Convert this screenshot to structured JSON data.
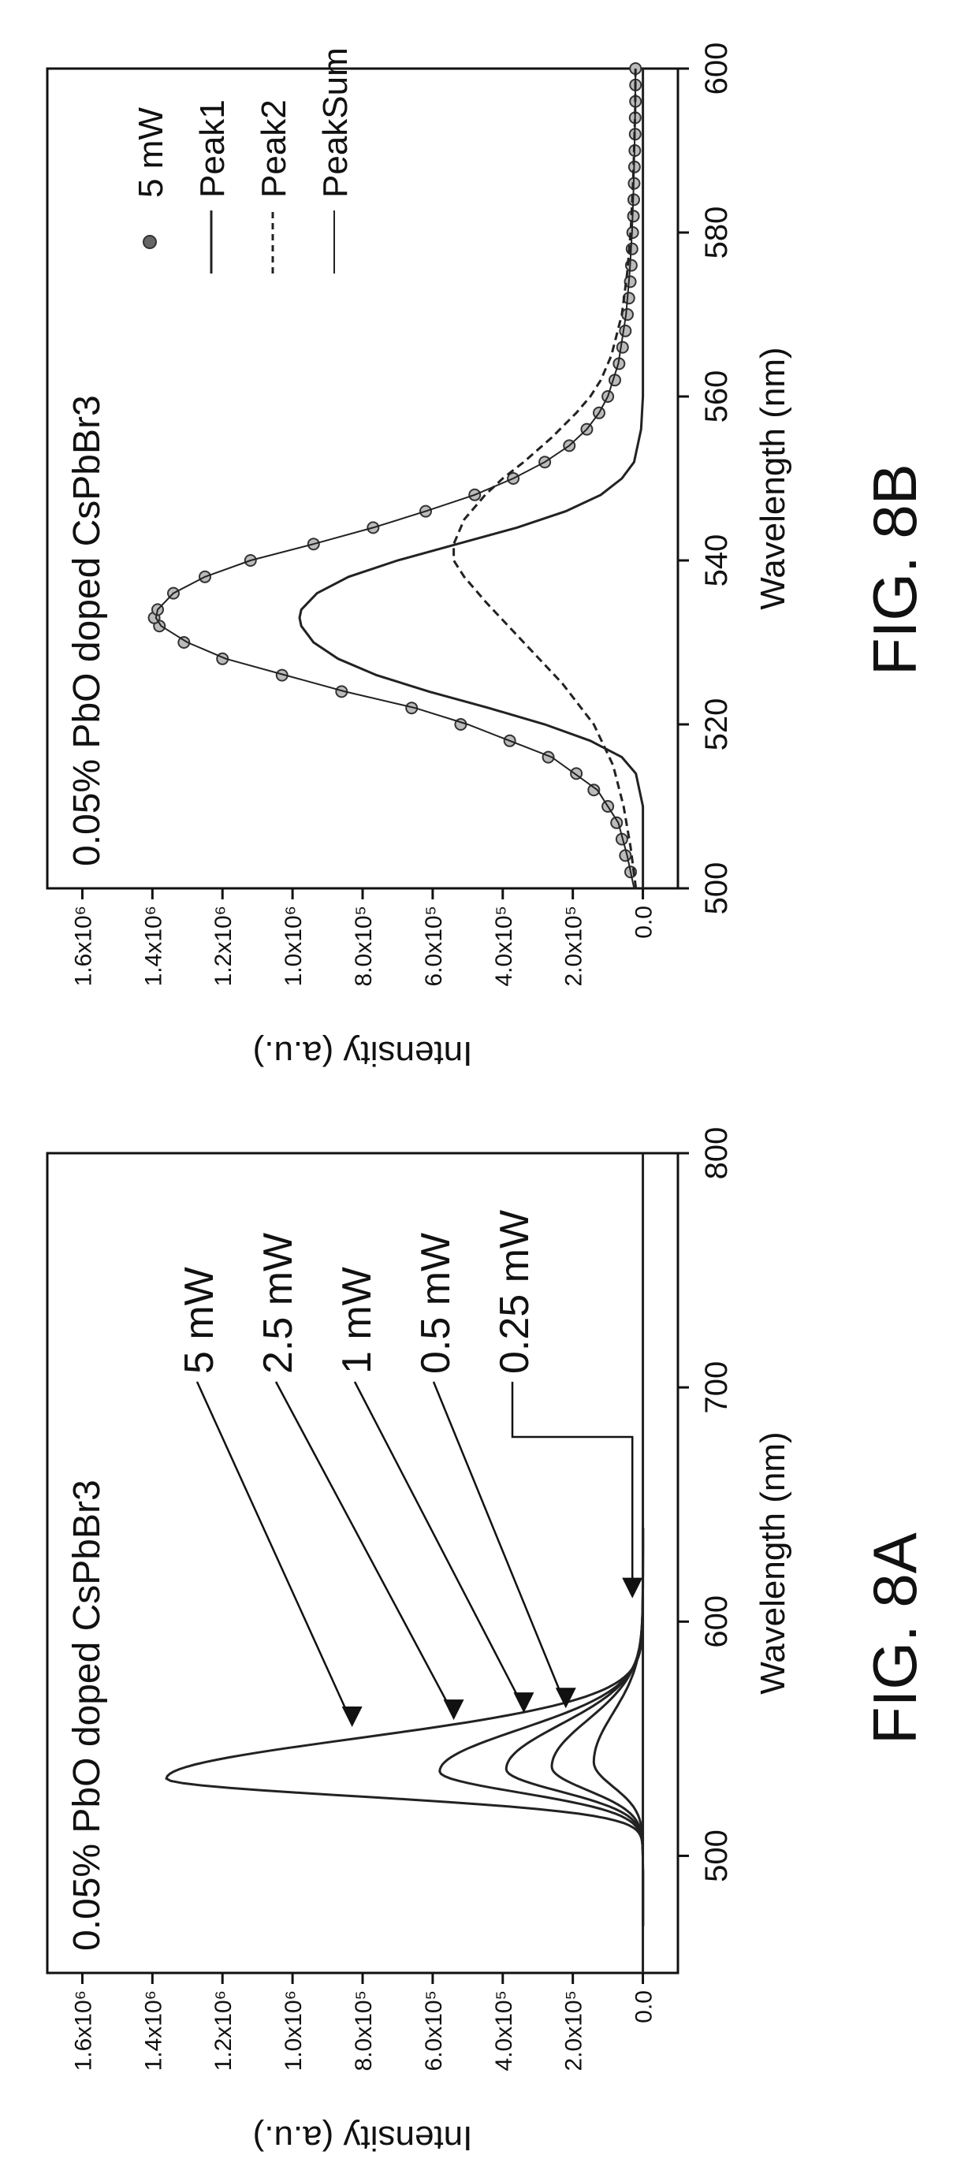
{
  "figures": [
    {
      "id": "fig8a",
      "figure_label": "FIG. 8A",
      "chart_data": {
        "type": "line",
        "title": "0.05% PbO doped CsPbBr3",
        "xlabel": "Wavelength (nm)",
        "ylabel": "Intensity (a.u.)",
        "xlim": [
          450,
          800
        ],
        "ylim": [
          -100000,
          1700000
        ],
        "x_ticks": [
          500,
          600,
          700,
          800
        ],
        "x_tick_labels": [
          "500",
          "600",
          "700",
          "800"
        ],
        "y_ticks": [
          0,
          200000,
          400000,
          600000,
          800000,
          1000000,
          1200000,
          1400000,
          1600000
        ],
        "y_tick_labels": [
          "0.0",
          "2.0x10⁵",
          "4.0x10⁵",
          "6.0x10⁵",
          "8.0x10⁵",
          "1.0x10⁶",
          "1.2x10⁶",
          "1.4x10⁶",
          "1.6x10⁶"
        ],
        "grid": false,
        "series": [
          {
            "name": "5 mW",
            "peak_x": 533,
            "peak_y": 1360000,
            "wl": 7.5,
            "wr": 17,
            "color": "#222222"
          },
          {
            "name": "2.5 mW",
            "peak_x": 536,
            "peak_y": 580000,
            "wl": 9,
            "wr": 18,
            "color": "#222222"
          },
          {
            "name": "1 mW",
            "peak_x": 537,
            "peak_y": 390000,
            "wl": 9.5,
            "wr": 19,
            "color": "#222222"
          },
          {
            "name": "0.5 mW",
            "peak_x": 538,
            "peak_y": 260000,
            "wl": 10,
            "wr": 20,
            "color": "#222222"
          },
          {
            "name": "0.25 mW",
            "peak_x": 540,
            "peak_y": 140000,
            "wl": 10.5,
            "wr": 21,
            "color": "#222222"
          }
        ],
        "annotations": [
          {
            "text": "5 mW",
            "points_to_x": 555,
            "points_to_y": 830000
          },
          {
            "text": "2.5 mW",
            "points_to_x": 558,
            "points_to_y": 540000
          },
          {
            "text": "1 mW",
            "points_to_x": 561,
            "points_to_y": 340000
          },
          {
            "text": "0.5 mW",
            "points_to_x": 563,
            "points_to_y": 220000
          },
          {
            "text": "0.25 mW",
            "points_to_x": 610,
            "points_to_y": 30000
          }
        ]
      }
    },
    {
      "id": "fig8b",
      "figure_label": "FIG. 8B",
      "chart_data": {
        "type": "line",
        "title": "0.05% PbO doped CsPbBr3",
        "xlabel": "Wavelength (nm)",
        "ylabel": "Intensity (a.u.)",
        "xlim": [
          500,
          600
        ],
        "ylim": [
          -100000,
          1700000
        ],
        "x_ticks": [
          500,
          520,
          540,
          560,
          580,
          600
        ],
        "x_tick_labels": [
          "500",
          "520",
          "540",
          "560",
          "580",
          "600"
        ],
        "y_ticks": [
          0,
          200000,
          400000,
          600000,
          800000,
          1000000,
          1200000,
          1400000,
          1600000
        ],
        "y_tick_labels": [
          "0.0",
          "2.0x10⁵",
          "4.0x10⁵",
          "6.0x10⁵",
          "8.0x10⁵",
          "1.0x10⁶",
          "1.2x10⁶",
          "1.4x10⁶",
          "1.6x10⁶"
        ],
        "grid": false,
        "legend_position": "top-right",
        "series": [
          {
            "name": "5 mW",
            "style": "markers",
            "x": [
              502,
              504,
              506,
              508,
              510,
              512,
              514,
              516,
              518,
              520,
              522,
              524,
              526,
              528,
              530,
              532,
              533,
              534,
              536,
              538,
              540,
              542,
              544,
              546,
              548,
              550,
              552,
              554,
              556,
              558,
              560,
              562,
              564,
              566,
              568,
              570,
              572,
              574,
              576,
              578,
              580,
              582,
              584,
              586,
              588,
              590,
              592,
              594,
              596,
              598,
              600
            ],
            "y": [
              35000,
              50000,
              60000,
              75000,
              100000,
              140000,
              190000,
              270000,
              380000,
              520000,
              660000,
              860000,
              1030000,
              1200000,
              1310000,
              1380000,
              1395000,
              1385000,
              1340000,
              1250000,
              1120000,
              940000,
              770000,
              620000,
              480000,
              370000,
              280000,
              210000,
              160000,
              125000,
              100000,
              80000,
              68000,
              58000,
              50000,
              44000,
              40000,
              36000,
              33000,
              31000,
              29000,
              27000,
              26000,
              25000,
              24000,
              23000,
              22000,
              22000,
              21000,
              21000,
              21000
            ]
          },
          {
            "name": "Peak1",
            "style": "solid",
            "x": [
              500,
              505,
              510,
              514,
              516,
              518,
              520,
              522,
              524,
              526,
              528,
              530,
              532,
              533,
              534,
              536,
              538,
              540,
              542,
              544,
              546,
              548,
              550,
              552,
              556,
              560,
              570,
              580,
              590,
              600
            ],
            "y": [
              0,
              0,
              0,
              20000,
              60000,
              150000,
              280000,
              440000,
              610000,
              760000,
              870000,
              940000,
              975000,
              980000,
              975000,
              930000,
              840000,
              700000,
              530000,
              360000,
              220000,
              120000,
              60000,
              25000,
              5000,
              0,
              0,
              0,
              0,
              0
            ]
          },
          {
            "name": "Peak2",
            "style": "dashed",
            "x": [
              500,
              505,
              510,
              515,
              520,
              525,
              530,
              535,
              538,
              540,
              542,
              545,
              548,
              550,
              552,
              555,
              558,
              560,
              562,
              565,
              570,
              575,
              580,
              585,
              590,
              595,
              600
            ],
            "y": [
              20000,
              35000,
              55000,
              85000,
              140000,
              230000,
              340000,
              450000,
              510000,
              540000,
              540000,
              510000,
              450000,
              400000,
              340000,
              260000,
              190000,
              150000,
              120000,
              90000,
              60000,
              45000,
              35000,
              29000,
              25000,
              22000,
              21000
            ]
          },
          {
            "name": "PeakSum",
            "style": "solid-thin",
            "x": [
              500,
              504,
              508,
              512,
              516,
              520,
              522,
              524,
              526,
              528,
              530,
              532,
              533,
              534,
              536,
              538,
              540,
              542,
              544,
              546,
              548,
              550,
              552,
              554,
              556,
              558,
              560,
              564,
              570,
              575,
              580,
              585,
              590,
              595,
              600
            ],
            "y": [
              25000,
              45000,
              70000,
              130000,
              260000,
              500000,
              650000,
              850000,
              1020000,
              1190000,
              1300000,
              1375000,
              1390000,
              1385000,
              1340000,
              1250000,
              1120000,
              940000,
              770000,
              620000,
              480000,
              370000,
              280000,
              210000,
              160000,
              125000,
              100000,
              70000,
              48000,
              38000,
              31000,
              27000,
              24000,
              22000,
              21000
            ]
          }
        ]
      }
    }
  ]
}
